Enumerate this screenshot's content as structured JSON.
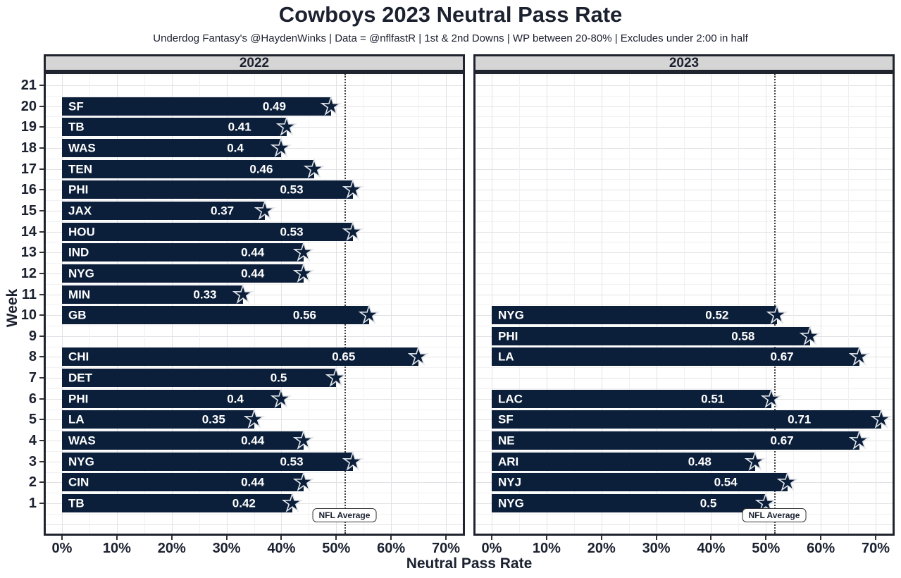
{
  "title": "Cowboys 2023 Neutral Pass Rate",
  "subtitle": "Underdog Fantasy's @HaydenWinks | Data = @nflfastR | 1st & 2nd Downs | WP between 20-80% | Excludes under 2:00 in half",
  "chart_data": {
    "type": "bar",
    "orientation": "horizontal",
    "title": "Cowboys 2023 Neutral Pass Rate",
    "xlabel": "Neutral Pass Rate",
    "ylabel": "Week",
    "x_ticks": [
      "0%",
      "10%",
      "20%",
      "30%",
      "40%",
      "50%",
      "60%",
      "70%"
    ],
    "x_tick_values": [
      0,
      0.1,
      0.2,
      0.3,
      0.4,
      0.5,
      0.6,
      0.7
    ],
    "xlim": [
      -0.03,
      0.73
    ],
    "y_ticks": [
      21,
      20,
      19,
      18,
      17,
      16,
      15,
      14,
      13,
      12,
      11,
      10,
      9,
      8,
      7,
      6,
      5,
      4,
      3,
      2,
      1
    ],
    "grid": true,
    "nfl_average": 0.515,
    "nfl_average_label": "NFL Average",
    "marker": "cowboys-star",
    "panels": [
      {
        "label": "2022",
        "bars": [
          {
            "week": 20,
            "team": "SF",
            "value": 0.49,
            "label": "0.49"
          },
          {
            "week": 19,
            "team": "TB",
            "value": 0.41,
            "label": "0.41"
          },
          {
            "week": 18,
            "team": "WAS",
            "value": 0.4,
            "label": "0.4"
          },
          {
            "week": 17,
            "team": "TEN",
            "value": 0.46,
            "label": "0.46"
          },
          {
            "week": 16,
            "team": "PHI",
            "value": 0.53,
            "label": "0.53"
          },
          {
            "week": 15,
            "team": "JAX",
            "value": 0.37,
            "label": "0.37"
          },
          {
            "week": 14,
            "team": "HOU",
            "value": 0.53,
            "label": "0.53"
          },
          {
            "week": 13,
            "team": "IND",
            "value": 0.44,
            "label": "0.44"
          },
          {
            "week": 12,
            "team": "NYG",
            "value": 0.44,
            "label": "0.44"
          },
          {
            "week": 11,
            "team": "MIN",
            "value": 0.33,
            "label": "0.33"
          },
          {
            "week": 10,
            "team": "GB",
            "value": 0.56,
            "label": "0.56"
          },
          {
            "week": 8,
            "team": "CHI",
            "value": 0.65,
            "label": "0.65"
          },
          {
            "week": 7,
            "team": "DET",
            "value": 0.5,
            "label": "0.5"
          },
          {
            "week": 6,
            "team": "PHI",
            "value": 0.4,
            "label": "0.4"
          },
          {
            "week": 5,
            "team": "LA",
            "value": 0.35,
            "label": "0.35"
          },
          {
            "week": 4,
            "team": "WAS",
            "value": 0.44,
            "label": "0.44"
          },
          {
            "week": 3,
            "team": "NYG",
            "value": 0.53,
            "label": "0.53"
          },
          {
            "week": 2,
            "team": "CIN",
            "value": 0.44,
            "label": "0.44"
          },
          {
            "week": 1,
            "team": "TB",
            "value": 0.42,
            "label": "0.42"
          }
        ]
      },
      {
        "label": "2023",
        "bars": [
          {
            "week": 10,
            "team": "NYG",
            "value": 0.52,
            "label": "0.52"
          },
          {
            "week": 9,
            "team": "PHI",
            "value": 0.58,
            "label": "0.58"
          },
          {
            "week": 8,
            "team": "LA",
            "value": 0.67,
            "label": "0.67"
          },
          {
            "week": 6,
            "team": "LAC",
            "value": 0.51,
            "label": "0.51"
          },
          {
            "week": 5,
            "team": "SF",
            "value": 0.71,
            "label": "0.71"
          },
          {
            "week": 4,
            "team": "NE",
            "value": 0.67,
            "label": "0.67"
          },
          {
            "week": 3,
            "team": "ARI",
            "value": 0.48,
            "label": "0.48"
          },
          {
            "week": 2,
            "team": "NYJ",
            "value": 0.54,
            "label": "0.54"
          },
          {
            "week": 1,
            "team": "NYG",
            "value": 0.5,
            "label": "0.5"
          }
        ]
      }
    ]
  },
  "colors": {
    "bar": "#0c1f3a",
    "bar_text": "#ffffff",
    "star_fill": "#0c1f3a",
    "star_stroke": "#e2e6ec",
    "strip_bg": "#d5d5d5",
    "panel_border": "#20242e",
    "grid_major": "#e2e2e6",
    "grid_minor": "#f1f1f3",
    "text": "#1c2130",
    "avg_line": "#3f3f3f"
  }
}
